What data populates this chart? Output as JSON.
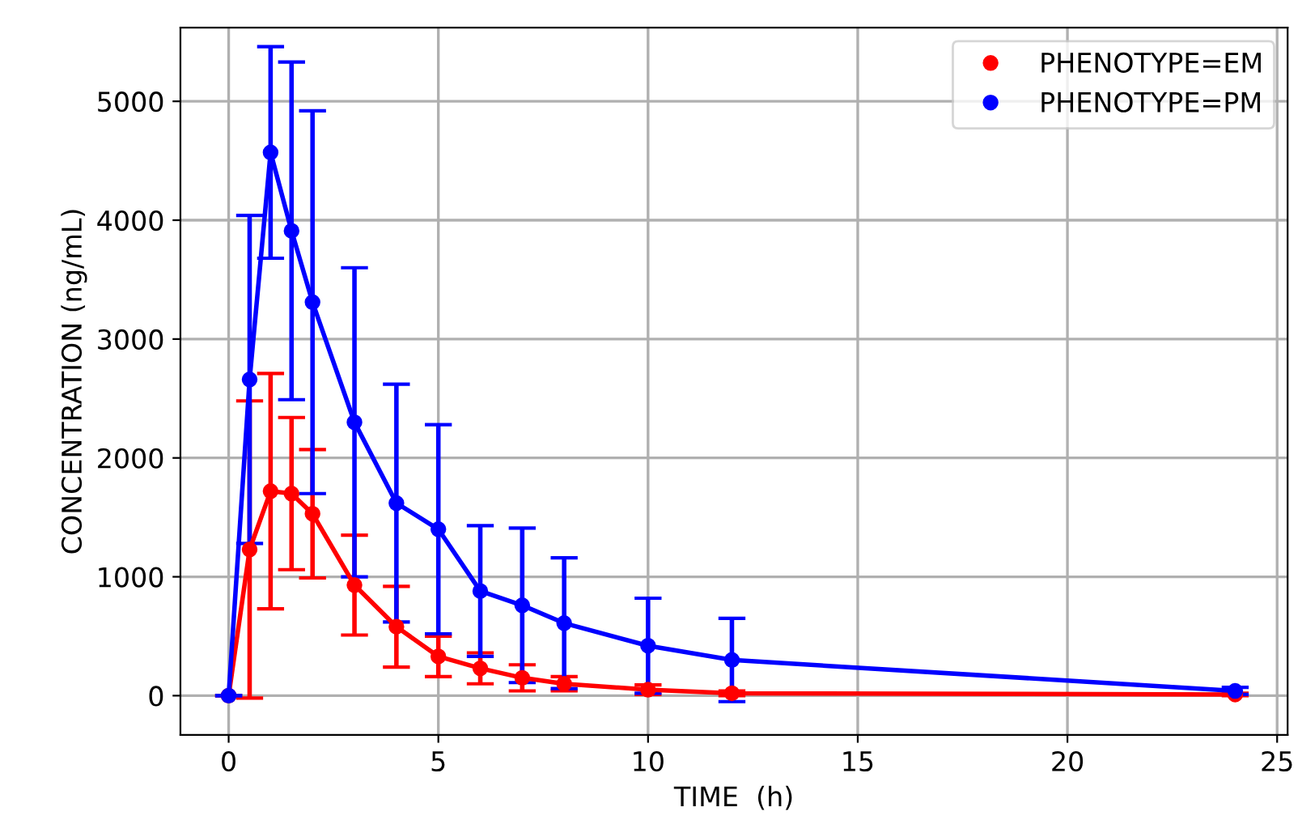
{
  "chart_data": {
    "type": "line",
    "xlabel": "TIME  (h)",
    "ylabel": "CONCENTRATION (ng/mL)",
    "x": [
      0,
      0.5,
      1,
      1.5,
      2,
      3,
      4,
      5,
      6,
      7,
      8,
      10,
      12,
      24
    ],
    "series": [
      {
        "name": "PHENOTYPE=EM",
        "color": "#ff0000",
        "values": [
          0,
          1230,
          1720,
          1700,
          1530,
          930,
          580,
          330,
          230,
          150,
          100,
          50,
          20,
          10
        ],
        "errors": [
          0,
          1250,
          990,
          640,
          540,
          420,
          340,
          170,
          130,
          110,
          60,
          40,
          20,
          10
        ]
      },
      {
        "name": "PHENOTYPE=PM",
        "color": "#0000ff",
        "values": [
          0,
          2660,
          4570,
          3910,
          3310,
          2300,
          1620,
          1400,
          880,
          760,
          610,
          420,
          300,
          40
        ],
        "errors": [
          0,
          1380,
          890,
          1420,
          1610,
          1300,
          1000,
          880,
          550,
          650,
          550,
          400,
          350,
          30
        ]
      }
    ],
    "xlim": [
      -1.15,
      25.25
    ],
    "ylim": [
      -330,
      5620
    ],
    "xticks": [
      0,
      5,
      10,
      15,
      20,
      25
    ],
    "yticks": [
      0,
      1000,
      2000,
      3000,
      4000,
      5000
    ],
    "grid": true,
    "legend": "top right",
    "marker": "circle",
    "line_style": "solid"
  }
}
